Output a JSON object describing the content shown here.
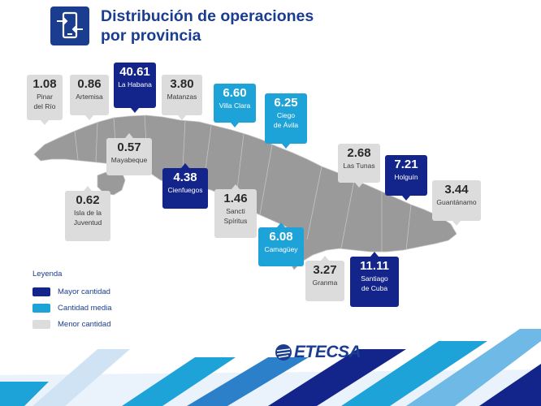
{
  "header": {
    "title_line1": "Distribución de operaciones",
    "title_line2": "por provincia",
    "icon": "mobile-exchange-icon"
  },
  "colors": {
    "dark": "#13258a",
    "medium": "#1ea3d8",
    "light": "#dcdcdc",
    "map": "#9a9a9a",
    "brand": "#1a3d8f"
  },
  "provinces": [
    {
      "id": "pinar",
      "value": "1.08",
      "lines": [
        "Pinar",
        "del Río"
      ],
      "level": "light"
    },
    {
      "id": "artemisa",
      "value": "0.86",
      "lines": [
        "Artemisa"
      ],
      "level": "light"
    },
    {
      "id": "habana",
      "value": "40.61",
      "lines": [
        "La Habana"
      ],
      "level": "dark"
    },
    {
      "id": "matanzas",
      "value": "3.80",
      "lines": [
        "Matanzas"
      ],
      "level": "light"
    },
    {
      "id": "villaclara",
      "value": "6.60",
      "lines": [
        "Villa Clara"
      ],
      "level": "medium"
    },
    {
      "id": "ciego",
      "value": "6.25",
      "lines": [
        "Ciego",
        "de Ávila"
      ],
      "level": "medium"
    },
    {
      "id": "mayabeque",
      "value": "0.57",
      "lines": [
        "Mayabeque"
      ],
      "level": "light"
    },
    {
      "id": "lastunas",
      "value": "2.68",
      "lines": [
        "Las Tunas"
      ],
      "level": "light"
    },
    {
      "id": "holguin",
      "value": "7.21",
      "lines": [
        "Holguín"
      ],
      "level": "dark"
    },
    {
      "id": "guantanamo",
      "value": "3.44",
      "lines": [
        "Guantánamo"
      ],
      "level": "light"
    },
    {
      "id": "cienfuegos",
      "value": "4.38",
      "lines": [
        "Cienfuegos"
      ],
      "level": "dark"
    },
    {
      "id": "isla",
      "value": "0.62",
      "lines": [
        "Isla de la",
        "Juventud"
      ],
      "level": "light"
    },
    {
      "id": "sancti",
      "value": "1.46",
      "lines": [
        "Sancti",
        "Spíritus"
      ],
      "level": "light"
    },
    {
      "id": "camaguey",
      "value": "6.08",
      "lines": [
        "Camagüey"
      ],
      "level": "medium"
    },
    {
      "id": "granma",
      "value": "3.27",
      "lines": [
        "Granma"
      ],
      "level": "light"
    },
    {
      "id": "santiago",
      "value": "11.11",
      "lines": [
        "Santiago",
        "de Cuba"
      ],
      "level": "dark"
    }
  ],
  "legend": {
    "title": "Leyenda",
    "items": [
      {
        "label": "Mayor cantidad",
        "level": "dark"
      },
      {
        "label": "Cantidad media",
        "level": "medium"
      },
      {
        "label": "Menor cantidad",
        "level": "light"
      }
    ]
  },
  "logo": {
    "text": "ETECSA",
    "icon": "etecsa-logo-icon"
  }
}
